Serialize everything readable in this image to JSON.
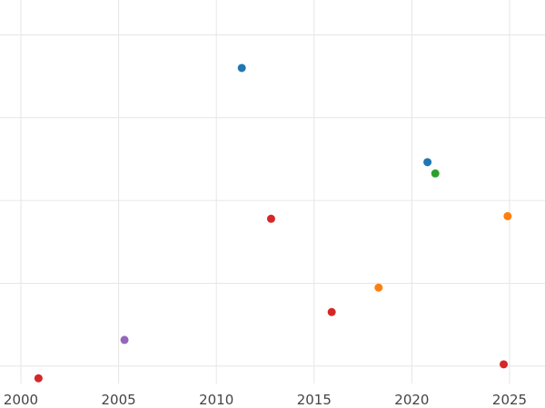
{
  "chart_data": {
    "type": "scatter",
    "title": "",
    "xlabel": "",
    "ylabel": "",
    "grid": true,
    "legend": "none",
    "xlim": [
      2000,
      2026.7
    ],
    "ylim": [
      0,
      440
    ],
    "xticks": [
      2000,
      2005,
      2010,
      2015,
      2020,
      2025
    ],
    "xtick_labels": [
      "2000",
      "2005",
      "2010",
      "2015",
      "2020",
      "2025"
    ],
    "y_gridlines": [
      20,
      115,
      210,
      305,
      400
    ],
    "points": [
      {
        "x": 2000.9,
        "y": 6,
        "color": "#d62728"
      },
      {
        "x": 2005.3,
        "y": 50,
        "color": "#9467bd"
      },
      {
        "x": 2011.3,
        "y": 362,
        "color": "#1f77b4"
      },
      {
        "x": 2012.8,
        "y": 189,
        "color": "#d62728"
      },
      {
        "x": 2015.9,
        "y": 82,
        "color": "#d62728"
      },
      {
        "x": 2018.3,
        "y": 110,
        "color": "#ff7f0e"
      },
      {
        "x": 2020.8,
        "y": 254,
        "color": "#1f77b4"
      },
      {
        "x": 2021.2,
        "y": 241,
        "color": "#2ca02c"
      },
      {
        "x": 2024.7,
        "y": 22,
        "color": "#d62728"
      },
      {
        "x": 2024.9,
        "y": 192,
        "color": "#ff7f0e"
      }
    ]
  }
}
